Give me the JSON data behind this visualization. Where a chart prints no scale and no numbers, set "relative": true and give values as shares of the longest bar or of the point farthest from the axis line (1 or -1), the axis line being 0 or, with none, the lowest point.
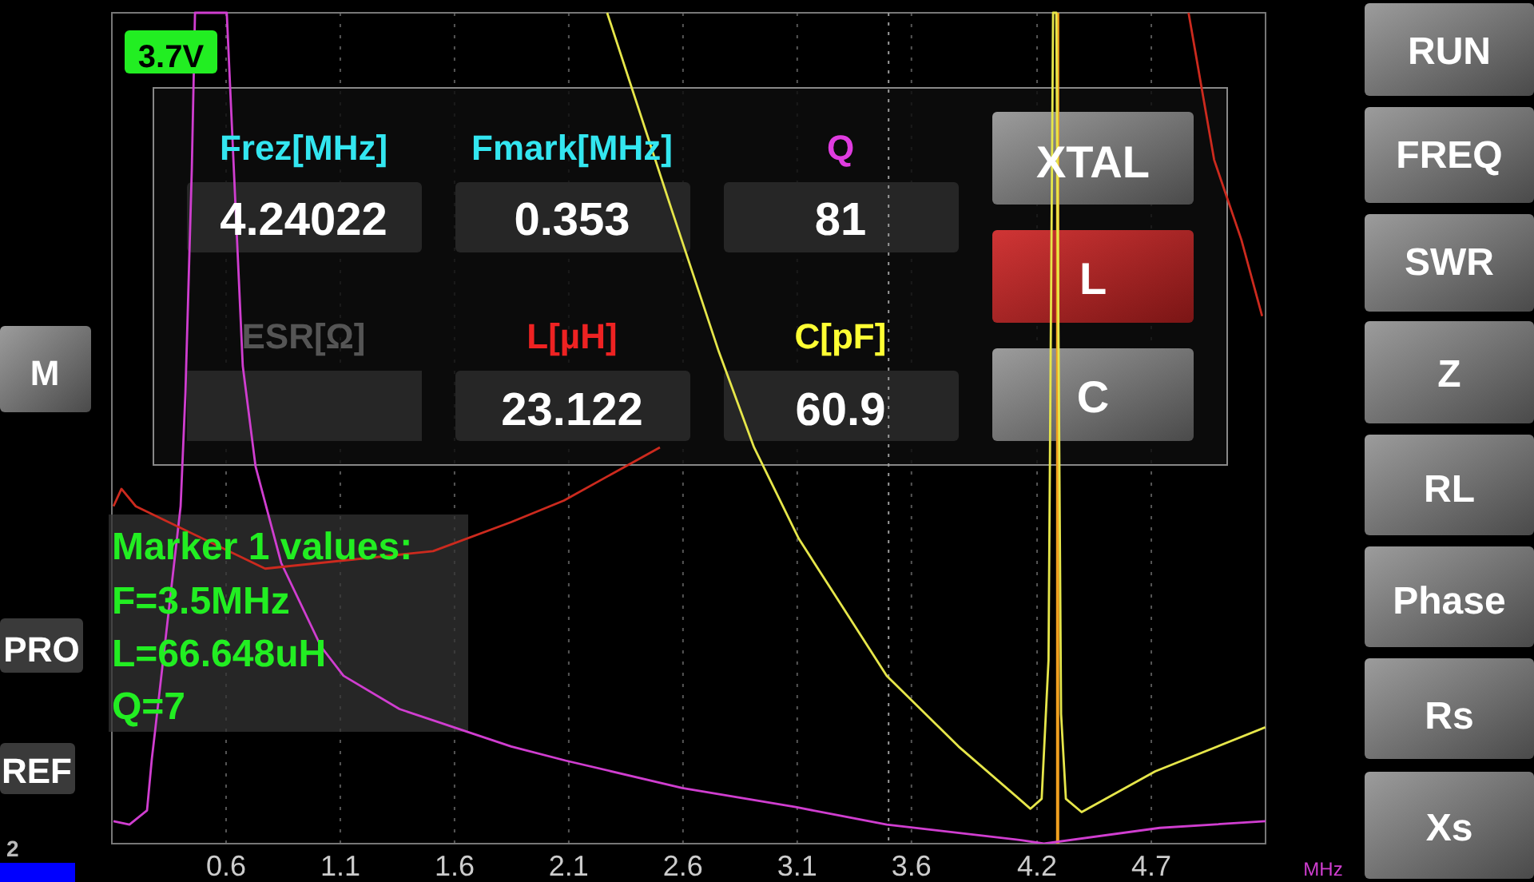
{
  "chart_data": {
    "type": "line",
    "relative": true,
    "xlabel": "MHz",
    "xlim": [
      0.1,
      5.15
    ],
    "xticks": [
      0.6,
      1.1,
      1.6,
      2.1,
      2.6,
      3.1,
      3.6,
      {
        "value": 4.15,
        "label": "4.2"
      },
      {
        "value": 4.65,
        "label": "4.7"
      }
    ],
    "grid": "x",
    "marker": "none",
    "line_style": "solid",
    "series": [
      {
        "color": "#d03ed0",
        "x": [
          0.107,
          0.177,
          0.254,
          0.275,
          0.289,
          0.401,
          0.422,
          0.45,
          0.464,
          0.603,
          0.673,
          0.729,
          0.841,
          1.016,
          1.114,
          1.359,
          1.652,
          1.848,
          2.086,
          2.597,
          3.093,
          3.492,
          4.086,
          4.18,
          4.687,
          5.15
        ],
        "values": [
          0.027,
          0.023,
          0.04,
          0.102,
          0.135,
          0.406,
          0.542,
          0.812,
          1,
          1,
          0.575,
          0.454,
          0.338,
          0.237,
          0.202,
          0.162,
          0.135,
          0.117,
          0.1,
          0.067,
          0.044,
          0.023,
          0.004,
          0,
          0.019,
          0.027
        ]
      },
      {
        "color": "#e6e64a",
        "x": [
          2.268,
          2.548,
          2.757,
          2.911,
          3.107,
          3.492,
          3.806,
          4.121,
          4.17,
          4.2,
          4.22,
          4.234,
          4.255,
          4.276,
          4.345,
          4.667,
          5.149
        ],
        "values": [
          1,
          0.765,
          0.592,
          0.477,
          0.367,
          0.202,
          0.117,
          0.042,
          0.054,
          0.221,
          1,
          1,
          0.156,
          0.054,
          0.038,
          0.087,
          0.14
        ]
      },
      {
        "color": "#cc2a1e",
        "x": [
          0.107,
          0.142,
          0.205,
          0.771,
          1.506,
          1.848,
          2.079,
          2.499,
          3.5,
          4.813,
          4.925,
          5.044,
          5.135
        ],
        "values": [
          0.406,
          0.427,
          0.406,
          0.331,
          0.352,
          0.387,
          0.413,
          0.477,
          null,
          1,
          0.823,
          0.727,
          0.635
        ]
      }
    ],
    "ref_lines": [
      {
        "axis": "x",
        "value": 4.24,
        "color": "#f0a020",
        "line_style": "solid"
      },
      {
        "axis": "x",
        "value": 3.5,
        "color": "#9a9a9a",
        "line_style": "dotted"
      }
    ],
    "annotations": [
      "3.7V",
      "Frez[MHz]",
      "Fmark[MHz]",
      "Q",
      "4.24022",
      "0.353",
      "81",
      "ESR[Ω]",
      "L[µH]",
      "C[pF]",
      "23.122",
      "60.9",
      "XTAL",
      "L",
      "C",
      "Marker 1 values:",
      "F=3.5MHz",
      "L=66.648uH",
      "Q=7",
      "M",
      "PRO",
      "REF",
      "2",
      "RUN",
      "FREQ",
      "SWR",
      "Z",
      "RL",
      "Phase",
      "Rs",
      "Xs"
    ]
  }
}
